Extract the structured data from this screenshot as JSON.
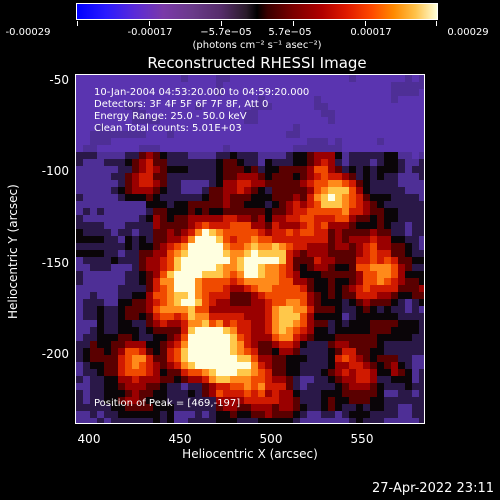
{
  "colorbar": {
    "labels": [
      "-0.00029",
      "-0.00017",
      "−5.7e−05",
      "5.7e−05",
      "0.00017",
      "0.00029"
    ],
    "units": "(photons cm⁻² s⁻¹ asec⁻²)"
  },
  "plot": {
    "title": "Reconstructed RHESSI Image",
    "annotations": {
      "time_range": "10-Jan-2004 04:53:20.000 to 04:59:20.000",
      "detectors": "Detectors: 3F 4F 5F 6F 7F 8F, Att 0",
      "energy": "Energy Range: 25.0 - 50.0 keV",
      "clean": "Clean      Total counts: 5.01E+03",
      "peak": "Position of Peak = [469,-197]"
    },
    "x_axis_label": "Heliocentric X (arcsec)",
    "y_axis_label": "Heliocentric Y (arcsec)",
    "x_ticks": [
      "400",
      "450",
      "500",
      "550"
    ],
    "y_ticks": [
      "-50",
      "-100",
      "-150",
      "-200"
    ]
  },
  "timestamp": "27-Apr-2022 23:11"
}
